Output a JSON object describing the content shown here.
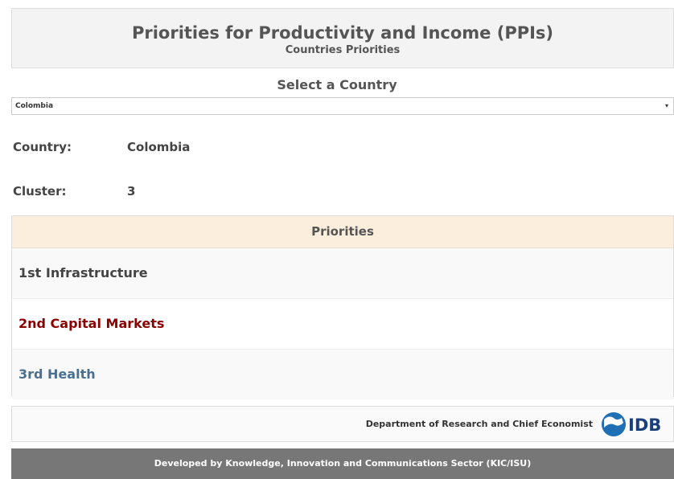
{
  "header": {
    "title": "Priorities for Productivity and Income (PPIs)",
    "subtitle": "Countries Priorities"
  },
  "selector": {
    "label": "Select a Country",
    "value": "Colombia"
  },
  "info": [
    {
      "label": "Country:",
      "value": "Colombia"
    },
    {
      "label": "Cluster:",
      "value": "3"
    }
  ],
  "priorities": {
    "header": "Priorities",
    "rows": [
      "1st Infrastructure",
      "2nd Capital Markets",
      "3rd Health"
    ]
  },
  "footer": {
    "department": "Department of Research and Chief Economist",
    "logo": "IDB",
    "credits": "Developed by Knowledge, Innovation and Communications Sector (KIC/ISU)"
  }
}
